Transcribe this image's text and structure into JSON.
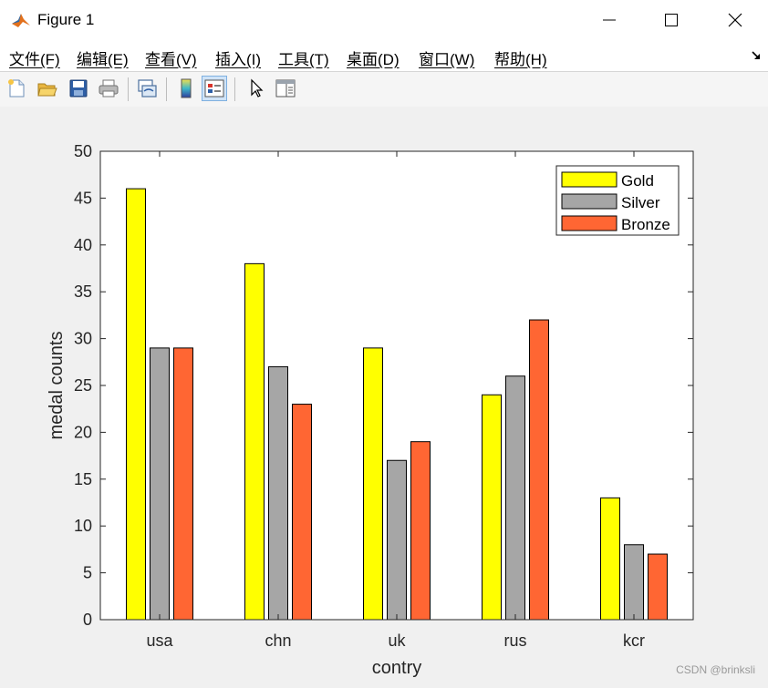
{
  "window": {
    "title": "Figure 1",
    "icons": [
      "matlab-logo-icon",
      "minimize-icon",
      "maximize-icon",
      "close-icon"
    ]
  },
  "menubar": {
    "items": [
      "文件(F)",
      "编辑(E)",
      "查看(V)",
      "插入(I)",
      "工具(T)",
      "桌面(D)",
      "窗口(W)",
      "帮助(H)"
    ],
    "overflow_icon": "dock-arrow-icon"
  },
  "toolbar": {
    "buttons": [
      "new-figure-icon",
      "open-file-icon",
      "save-icon",
      "print-icon",
      "link-plot-icon",
      "insert-colorbar-icon",
      "insert-legend-icon",
      "edit-plot-icon",
      "property-inspector-icon"
    ],
    "active": "insert-legend-icon"
  },
  "chart_data": {
    "type": "bar",
    "categories": [
      "usa",
      "chn",
      "uk",
      "rus",
      "kcr"
    ],
    "series": [
      {
        "name": "Gold",
        "values": [
          46,
          38,
          29,
          24,
          13
        ],
        "color": "#ffff00"
      },
      {
        "name": "Silver",
        "values": [
          29,
          27,
          17,
          26,
          8
        ],
        "color": "#a6a6a6"
      },
      {
        "name": "Bronze",
        "values": [
          29,
          23,
          19,
          32,
          7
        ],
        "color": "#ff6633"
      }
    ],
    "title": "",
    "xlabel": "contry",
    "ylabel": "medal counts",
    "ylim": [
      0,
      50
    ],
    "yticks": [
      0,
      5,
      10,
      15,
      20,
      25,
      30,
      35,
      40,
      45,
      50
    ],
    "grid": false,
    "legend_position": "top-right"
  },
  "watermark": "CSDN @brinksli"
}
